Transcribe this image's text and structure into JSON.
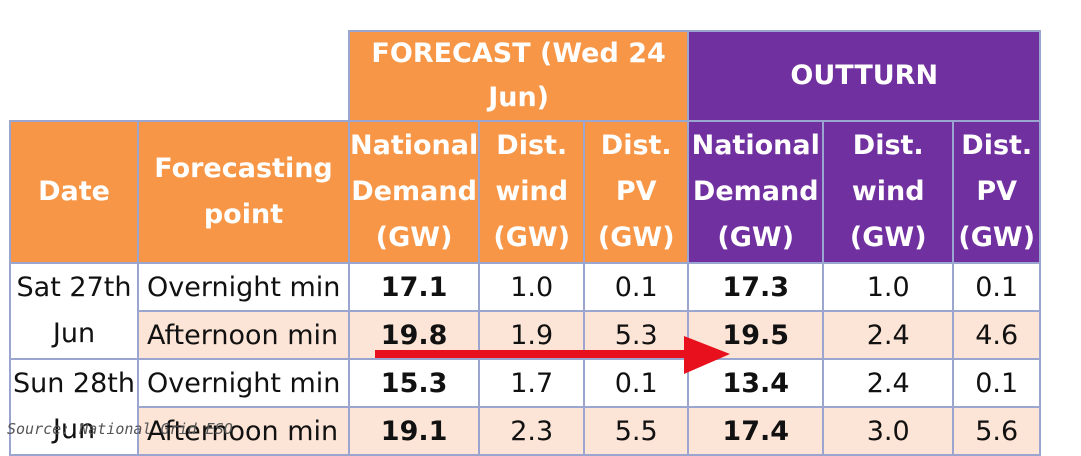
{
  "table": {
    "group_headers": {
      "forecast": "FORECAST (Wed 24 Jun)",
      "outturn": "OUTTURN"
    },
    "column_headers": {
      "date": "Date",
      "forecasting_point": [
        "Forecasting",
        "point"
      ],
      "national_demand": [
        "National",
        "Demand",
        "(GW)"
      ],
      "dist_wind": [
        "Dist.",
        "wind",
        "(GW)"
      ],
      "dist_pv": [
        "Dist.",
        "PV",
        "(GW)"
      ]
    },
    "dates": [
      [
        "Sat 27th",
        "Jun"
      ],
      [
        "Sun 28th",
        "Jun"
      ]
    ],
    "rows": [
      {
        "point": "Overnight min",
        "forecast": [
          "17.1",
          "1.0",
          "0.1"
        ],
        "outturn": [
          "17.3",
          "1.0",
          "0.1"
        ]
      },
      {
        "point": "Afternoon min",
        "forecast": [
          "19.8",
          "1.9",
          "5.3"
        ],
        "outturn": [
          "19.5",
          "2.4",
          "4.6"
        ]
      },
      {
        "point": "Overnight min",
        "forecast": [
          "15.3",
          "1.7",
          "0.1"
        ],
        "outturn": [
          "13.4",
          "2.4",
          "0.1"
        ]
      },
      {
        "point": "Afternoon min",
        "forecast": [
          "19.1",
          "2.3",
          "5.5"
        ],
        "outturn": [
          "17.4",
          "3.0",
          "5.6"
        ]
      }
    ]
  },
  "source": "Source: National Grid ESO",
  "colors": {
    "forecast_header": "#f79646",
    "outturn_header": "#7030a0",
    "alt_row": "#fce4d6",
    "border": "#9aa6cf",
    "arrow": "#e8101c"
  },
  "annotation": {
    "type": "arrow",
    "from_row": 2,
    "from_column": "forecast_national_demand",
    "to_column": "outturn_national_demand"
  }
}
